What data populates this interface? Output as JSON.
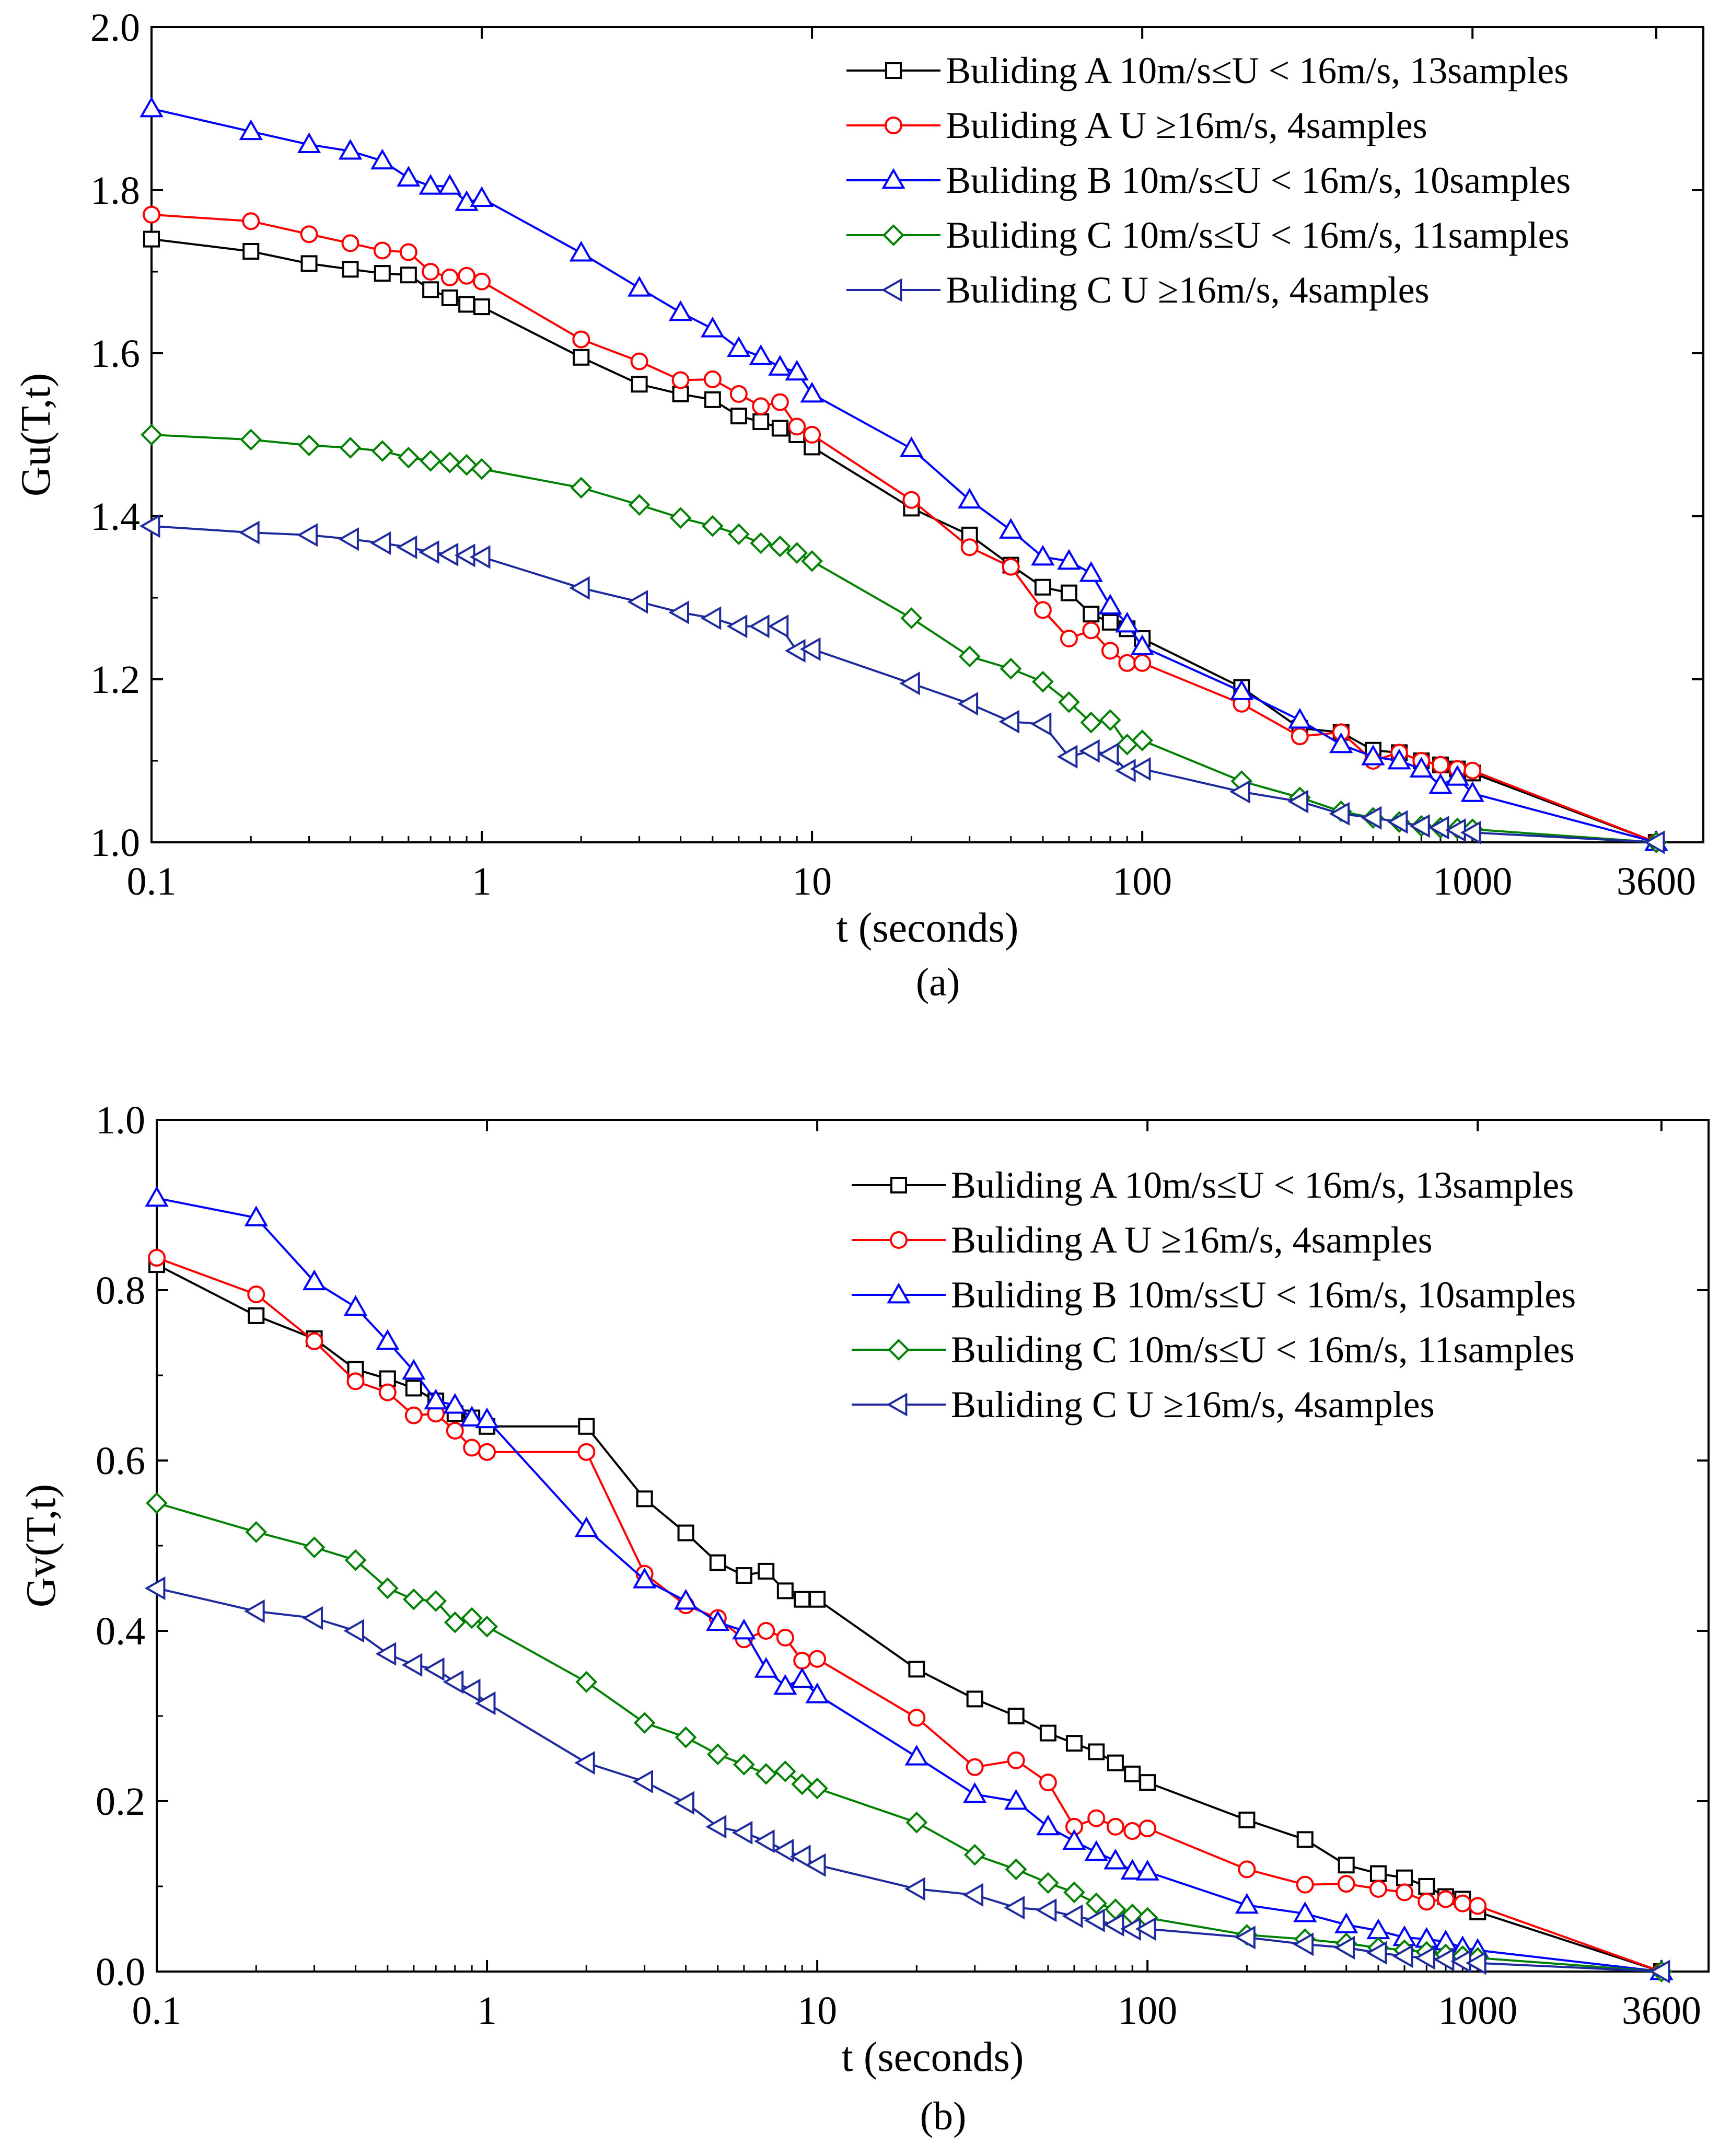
{
  "chart_data": [
    {
      "type": "line",
      "panel_label": "(a)",
      "xlabel": "t (seconds)",
      "ylabel": "Gu(T,t)",
      "xscale": "log",
      "xlim": [
        0.1,
        5000
      ],
      "ylim": [
        1.0,
        2.0
      ],
      "xticks": [
        0.1,
        1,
        10,
        100,
        1000,
        3600
      ],
      "xtick_labels": [
        "0.1",
        "1",
        "10",
        "100",
        "1000",
        "3600"
      ],
      "yticks": [
        1.0,
        1.2,
        1.4,
        1.6,
        1.8,
        2.0
      ],
      "ytick_labels": [
        "1.0",
        "1.2",
        "1.4",
        "1.6",
        "1.8",
        "2.0"
      ],
      "legend": "top-right",
      "grid": false,
      "series": [
        {
          "name": "Buliding A 10m/s≤U < 16m/s, 13samples",
          "color": "#000000",
          "marker": "square",
          "x": [
            0.1,
            0.2,
            0.3,
            0.4,
            0.5,
            0.6,
            0.7,
            0.8,
            0.9,
            1,
            2,
            3,
            4,
            5,
            6,
            7,
            8,
            9,
            10,
            20,
            30,
            40,
            50,
            60,
            70,
            80,
            90,
            100,
            200,
            300,
            400,
            500,
            600,
            700,
            800,
            900,
            1000,
            3600
          ],
          "y": [
            1.74,
            1.725,
            1.71,
            1.703,
            1.698,
            1.696,
            1.678,
            1.668,
            1.66,
            1.657,
            1.595,
            1.562,
            1.55,
            1.543,
            1.523,
            1.516,
            1.508,
            1.5,
            1.485,
            1.41,
            1.377,
            1.34,
            1.313,
            1.306,
            1.28,
            1.27,
            1.262,
            1.25,
            1.19,
            1.14,
            1.135,
            1.113,
            1.11,
            1.1,
            1.095,
            1.09,
            1.085,
            1.0
          ]
        },
        {
          "name": "Buliding A U ≥16m/s, 4samples",
          "color": "#ff0000",
          "marker": "circle",
          "x": [
            0.1,
            0.2,
            0.3,
            0.4,
            0.5,
            0.6,
            0.7,
            0.8,
            0.9,
            1,
            2,
            3,
            4,
            5,
            6,
            7,
            8,
            9,
            10,
            20,
            30,
            40,
            50,
            60,
            70,
            80,
            90,
            100,
            200,
            300,
            400,
            500,
            600,
            700,
            800,
            900,
            1000,
            3600
          ],
          "y": [
            1.77,
            1.762,
            1.746,
            1.735,
            1.726,
            1.724,
            1.7,
            1.693,
            1.695,
            1.688,
            1.617,
            1.59,
            1.567,
            1.568,
            1.55,
            1.535,
            1.54,
            1.51,
            1.5,
            1.42,
            1.362,
            1.338,
            1.285,
            1.25,
            1.26,
            1.235,
            1.22,
            1.22,
            1.17,
            1.13,
            1.135,
            1.1,
            1.11,
            1.1,
            1.095,
            1.09,
            1.088,
            1.0
          ]
        },
        {
          "name": "Buliding B 10m/s≤U < 16m/s, 10samples",
          "color": "#0000ff",
          "marker": "triangle-up",
          "x": [
            0.1,
            0.2,
            0.3,
            0.4,
            0.5,
            0.6,
            0.7,
            0.8,
            0.9,
            1,
            2,
            3,
            4,
            5,
            6,
            7,
            8,
            9,
            10,
            20,
            30,
            40,
            50,
            60,
            70,
            80,
            90,
            100,
            200,
            300,
            400,
            500,
            600,
            700,
            800,
            900,
            1000,
            3600
          ],
          "y": [
            1.9,
            1.872,
            1.856,
            1.848,
            1.836,
            1.815,
            1.805,
            1.805,
            1.785,
            1.79,
            1.723,
            1.68,
            1.65,
            1.63,
            1.606,
            1.596,
            1.583,
            1.577,
            1.55,
            1.483,
            1.42,
            1.383,
            1.35,
            1.345,
            1.33,
            1.29,
            1.268,
            1.24,
            1.185,
            1.15,
            1.12,
            1.105,
            1.1,
            1.09,
            1.07,
            1.08,
            1.06,
            1.0
          ]
        },
        {
          "name": "Buliding C 10m/s≤U < 16m/s, 11samples",
          "color": "#008000",
          "marker": "diamond",
          "x": [
            0.1,
            0.2,
            0.3,
            0.4,
            0.5,
            0.6,
            0.7,
            0.8,
            0.9,
            1,
            2,
            3,
            4,
            5,
            6,
            7,
            8,
            9,
            10,
            20,
            30,
            40,
            50,
            60,
            70,
            80,
            90,
            100,
            200,
            300,
            400,
            500,
            600,
            700,
            800,
            900,
            1000,
            3600
          ],
          "y": [
            1.5,
            1.494,
            1.487,
            1.484,
            1.48,
            1.472,
            1.468,
            1.466,
            1.463,
            1.458,
            1.435,
            1.414,
            1.398,
            1.388,
            1.378,
            1.367,
            1.363,
            1.355,
            1.345,
            1.275,
            1.228,
            1.213,
            1.197,
            1.172,
            1.147,
            1.15,
            1.12,
            1.125,
            1.075,
            1.055,
            1.038,
            1.03,
            1.025,
            1.02,
            1.018,
            1.017,
            1.016,
            1.0
          ]
        },
        {
          "name": "Buliding C U ≥16m/s, 4samples",
          "color": "#1f2a9e",
          "marker": "triangle-left",
          "x": [
            0.1,
            0.2,
            0.3,
            0.4,
            0.5,
            0.6,
            0.7,
            0.8,
            0.9,
            1,
            2,
            3,
            4,
            5,
            6,
            7,
            8,
            9,
            10,
            20,
            30,
            40,
            50,
            60,
            70,
            80,
            90,
            100,
            200,
            300,
            400,
            500,
            600,
            700,
            800,
            900,
            1000,
            3600
          ],
          "y": [
            1.388,
            1.38,
            1.377,
            1.372,
            1.367,
            1.362,
            1.356,
            1.353,
            1.352,
            1.35,
            1.312,
            1.295,
            1.282,
            1.275,
            1.265,
            1.265,
            1.265,
            1.235,
            1.237,
            1.195,
            1.17,
            1.148,
            1.145,
            1.105,
            1.112,
            1.108,
            1.088,
            1.09,
            1.062,
            1.05,
            1.035,
            1.03,
            1.025,
            1.02,
            1.018,
            1.015,
            1.012,
            1.0
          ]
        }
      ]
    },
    {
      "type": "line",
      "panel_label": "(b)",
      "xlabel": "t (seconds)",
      "ylabel": "Gv(T,t)",
      "xscale": "log",
      "xlim": [
        0.1,
        5000
      ],
      "ylim": [
        0.0,
        1.0
      ],
      "xticks": [
        0.1,
        1,
        10,
        100,
        1000,
        3600
      ],
      "xtick_labels": [
        "0.1",
        "1",
        "10",
        "100",
        "1000",
        "3600"
      ],
      "yticks": [
        0.0,
        0.2,
        0.4,
        0.6,
        0.8,
        1.0
      ],
      "ytick_labels": [
        "0.0",
        "0.2",
        "0.4",
        "0.6",
        "0.8",
        "1.0"
      ],
      "legend": "top-right",
      "grid": false,
      "series": [
        {
          "name": "Buliding A 10m/s≤U < 16m/s, 13samples",
          "color": "#000000",
          "marker": "square",
          "x": [
            0.1,
            0.2,
            0.3,
            0.4,
            0.5,
            0.6,
            0.7,
            0.8,
            0.9,
            1,
            2,
            3,
            4,
            5,
            6,
            7,
            8,
            9,
            10,
            20,
            30,
            40,
            50,
            60,
            70,
            80,
            90,
            100,
            200,
            300,
            400,
            500,
            600,
            700,
            800,
            900,
            1000,
            3600
          ],
          "y": [
            0.83,
            0.77,
            0.743,
            0.707,
            0.696,
            0.685,
            0.67,
            0.655,
            0.65,
            0.64,
            0.64,
            0.555,
            0.515,
            0.48,
            0.465,
            0.47,
            0.447,
            0.437,
            0.437,
            0.355,
            0.32,
            0.3,
            0.28,
            0.268,
            0.258,
            0.245,
            0.232,
            0.222,
            0.178,
            0.155,
            0.125,
            0.115,
            0.11,
            0.1,
            0.088,
            0.085,
            0.07,
            0.0
          ]
        },
        {
          "name": "Buliding A U ≥16m/s, 4samples",
          "color": "#ff0000",
          "marker": "circle",
          "x": [
            0.1,
            0.2,
            0.3,
            0.4,
            0.5,
            0.6,
            0.7,
            0.8,
            0.9,
            1,
            2,
            3,
            4,
            5,
            6,
            7,
            8,
            9,
            10,
            20,
            30,
            40,
            50,
            60,
            70,
            80,
            90,
            100,
            200,
            300,
            400,
            500,
            600,
            700,
            800,
            900,
            1000,
            3600
          ],
          "y": [
            0.838,
            0.795,
            0.74,
            0.693,
            0.68,
            0.653,
            0.655,
            0.635,
            0.615,
            0.61,
            0.61,
            0.467,
            0.43,
            0.415,
            0.39,
            0.4,
            0.392,
            0.365,
            0.367,
            0.298,
            0.24,
            0.248,
            0.222,
            0.17,
            0.18,
            0.17,
            0.165,
            0.168,
            0.12,
            0.102,
            0.103,
            0.097,
            0.093,
            0.082,
            0.085,
            0.08,
            0.077,
            0.0
          ]
        },
        {
          "name": "Buliding B 10m/s≤U < 16m/s, 10samples",
          "color": "#0000ff",
          "marker": "triangle-up",
          "x": [
            0.1,
            0.2,
            0.3,
            0.4,
            0.5,
            0.6,
            0.7,
            0.8,
            0.9,
            1,
            2,
            3,
            4,
            5,
            6,
            7,
            8,
            9,
            10,
            20,
            30,
            40,
            50,
            60,
            70,
            80,
            90,
            100,
            200,
            300,
            400,
            500,
            600,
            700,
            800,
            900,
            1000,
            3600
          ],
          "y": [
            0.908,
            0.885,
            0.81,
            0.78,
            0.74,
            0.705,
            0.67,
            0.665,
            0.65,
            0.648,
            0.52,
            0.46,
            0.435,
            0.41,
            0.4,
            0.355,
            0.335,
            0.343,
            0.325,
            0.252,
            0.208,
            0.2,
            0.17,
            0.153,
            0.14,
            0.13,
            0.118,
            0.117,
            0.078,
            0.068,
            0.055,
            0.048,
            0.04,
            0.038,
            0.035,
            0.028,
            0.025,
            0.0
          ]
        },
        {
          "name": "Buliding C 10m/s≤U < 16m/s, 11samples",
          "color": "#008000",
          "marker": "diamond",
          "x": [
            0.1,
            0.2,
            0.3,
            0.4,
            0.5,
            0.6,
            0.7,
            0.8,
            0.9,
            1,
            2,
            3,
            4,
            5,
            6,
            7,
            8,
            9,
            10,
            20,
            30,
            40,
            50,
            60,
            70,
            80,
            90,
            100,
            200,
            300,
            400,
            500,
            600,
            700,
            800,
            900,
            1000,
            3600
          ],
          "y": [
            0.55,
            0.516,
            0.498,
            0.483,
            0.45,
            0.437,
            0.435,
            0.41,
            0.415,
            0.405,
            0.34,
            0.292,
            0.275,
            0.255,
            0.243,
            0.232,
            0.235,
            0.22,
            0.215,
            0.175,
            0.137,
            0.12,
            0.104,
            0.093,
            0.08,
            0.073,
            0.067,
            0.063,
            0.043,
            0.038,
            0.033,
            0.028,
            0.025,
            0.023,
            0.02,
            0.018,
            0.016,
            0.0
          ]
        },
        {
          "name": "Buliding C U ≥16m/s, 4samples",
          "color": "#1f2a9e",
          "marker": "triangle-left",
          "x": [
            0.1,
            0.2,
            0.3,
            0.4,
            0.5,
            0.6,
            0.7,
            0.8,
            0.9,
            1,
            2,
            3,
            4,
            5,
            6,
            7,
            8,
            9,
            10,
            20,
            30,
            40,
            50,
            60,
            70,
            80,
            90,
            100,
            200,
            300,
            400,
            500,
            600,
            700,
            800,
            900,
            1000,
            3600
          ],
          "y": [
            0.45,
            0.423,
            0.415,
            0.4,
            0.373,
            0.36,
            0.355,
            0.34,
            0.33,
            0.315,
            0.245,
            0.223,
            0.198,
            0.17,
            0.163,
            0.153,
            0.142,
            0.135,
            0.125,
            0.097,
            0.09,
            0.075,
            0.072,
            0.065,
            0.06,
            0.055,
            0.05,
            0.05,
            0.04,
            0.032,
            0.028,
            0.022,
            0.018,
            0.016,
            0.014,
            0.012,
            0.01,
            0.0
          ]
        }
      ]
    }
  ]
}
